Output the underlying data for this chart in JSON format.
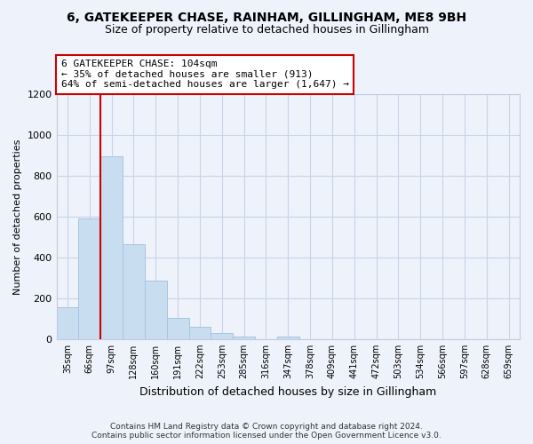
{
  "title": "6, GATEKEEPER CHASE, RAINHAM, GILLINGHAM, ME8 9BH",
  "subtitle": "Size of property relative to detached houses in Gillingham",
  "xlabel": "Distribution of detached houses by size in Gillingham",
  "ylabel": "Number of detached properties",
  "bar_labels": [
    "35sqm",
    "66sqm",
    "97sqm",
    "128sqm",
    "160sqm",
    "191sqm",
    "222sqm",
    "253sqm",
    "285sqm",
    "316sqm",
    "347sqm",
    "378sqm",
    "409sqm",
    "441sqm",
    "472sqm",
    "503sqm",
    "534sqm",
    "566sqm",
    "597sqm",
    "628sqm",
    "659sqm"
  ],
  "bar_values": [
    155,
    590,
    895,
    465,
    285,
    105,
    60,
    28,
    13,
    0,
    12,
    0,
    0,
    0,
    0,
    0,
    0,
    0,
    0,
    0,
    0
  ],
  "bar_color": "#c9ddf0",
  "bar_edge_color": "#a8c4df",
  "vline_x_idx": 2,
  "vline_color": "#cc0000",
  "ylim": [
    0,
    1200
  ],
  "yticks": [
    0,
    200,
    400,
    600,
    800,
    1000,
    1200
  ],
  "annotation_title": "6 GATEKEEPER CHASE: 104sqm",
  "annotation_line1": "← 35% of detached houses are smaller (913)",
  "annotation_line2": "64% of semi-detached houses are larger (1,647) →",
  "annotation_box_color": "#ffffff",
  "annotation_box_edge": "#cc0000",
  "footer_line1": "Contains HM Land Registry data © Crown copyright and database right 2024.",
  "footer_line2": "Contains public sector information licensed under the Open Government Licence v3.0.",
  "grid_color": "#c8d4e8",
  "background_color": "#eef2fa"
}
